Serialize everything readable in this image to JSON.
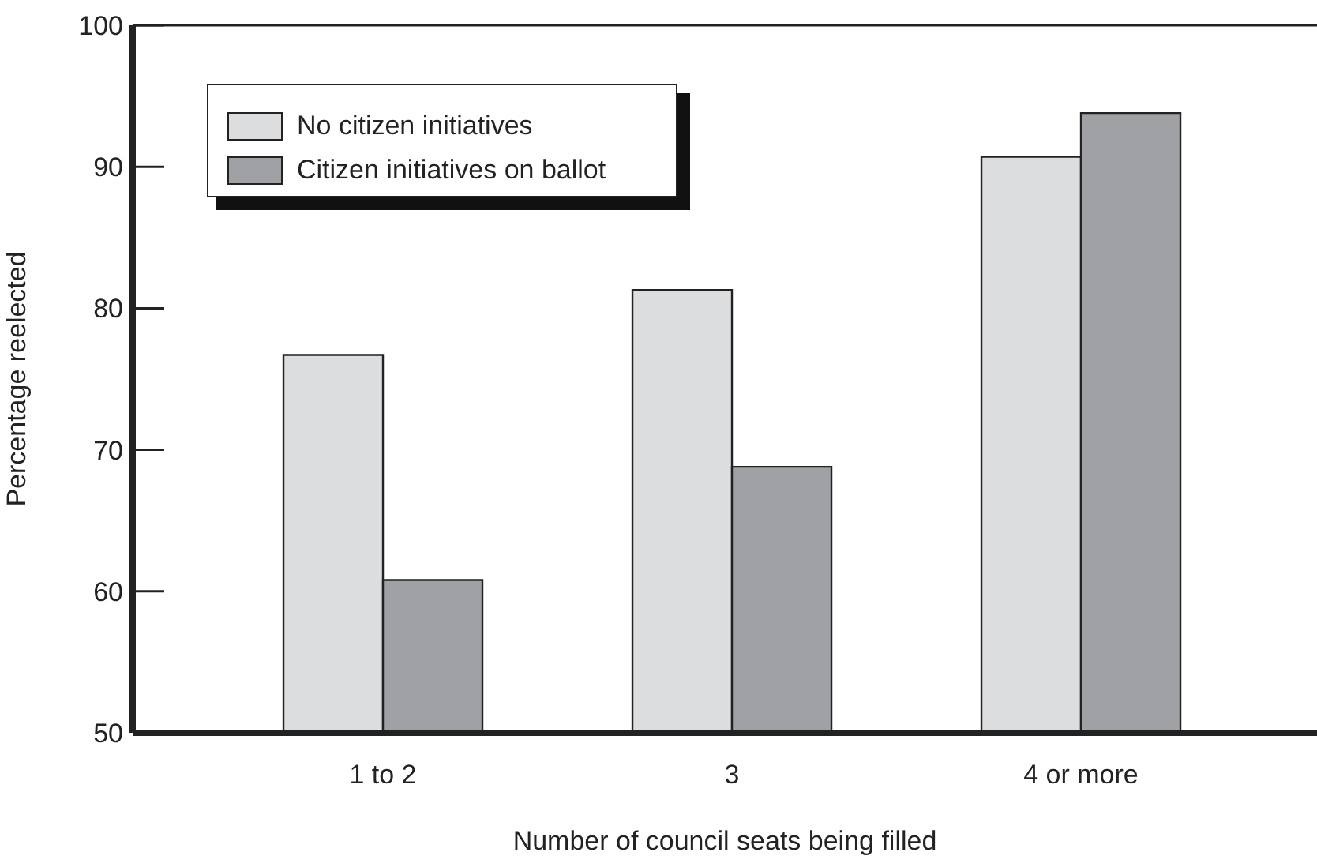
{
  "chart_data": {
    "type": "bar",
    "xlabel": "Number of council seats being filled",
    "ylabel": "Percentage reelected",
    "categories": [
      "1 to 2",
      "3",
      "4 or more"
    ],
    "series": [
      {
        "name": "No citizen initiatives",
        "color": "#dcdddf",
        "values": [
          76.7,
          81.3,
          90.7
        ]
      },
      {
        "name": "Citizen initiatives on ballot",
        "color": "#a0a1a5",
        "values": [
          60.8,
          68.8,
          93.8
        ]
      }
    ],
    "ylim": [
      50,
      100
    ],
    "yticks": [
      50,
      60,
      70,
      80,
      90,
      100
    ],
    "grid": false,
    "legend": "top left"
  }
}
